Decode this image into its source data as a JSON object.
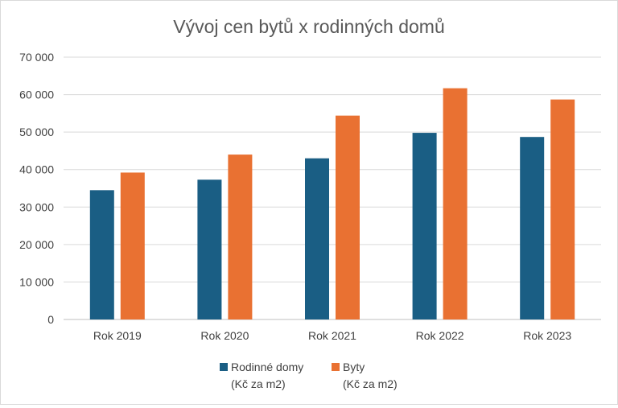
{
  "chart_data": {
    "type": "bar",
    "title": "Vývoj cen bytů x rodinných domů",
    "categories": [
      "Rok 2019",
      "Rok 2020",
      "Rok 2021",
      "Rok 2022",
      "Rok 2023"
    ],
    "series": [
      {
        "name": "Rodinné domy",
        "unit_label": "(Kč za m2)",
        "color": "#1a5e84",
        "values": [
          34500,
          37300,
          43000,
          49800,
          48700
        ]
      },
      {
        "name": "Byty",
        "unit_label": "(Kč za m2)",
        "color": "#e97132",
        "values": [
          39200,
          44000,
          54400,
          61700,
          58700
        ]
      }
    ],
    "ylim": [
      0,
      70000
    ],
    "yticks": [
      0,
      10000,
      20000,
      30000,
      40000,
      50000,
      60000,
      70000
    ],
    "ytick_labels": [
      "0",
      "10 000",
      "20 000",
      "30 000",
      "40 000",
      "50 000",
      "60 000",
      "70 000"
    ],
    "grid": true,
    "legend_position": "bottom",
    "xlabel": "",
    "ylabel": ""
  }
}
